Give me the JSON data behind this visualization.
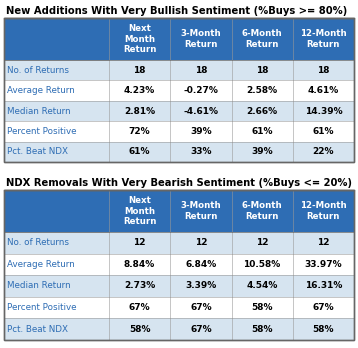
{
  "title1": "New Additions With Very Bullish Sentiment (%Buys >= 80%)",
  "title2": "NDX Removals With Very Bearish Sentiment (%Buys <= 20%)",
  "col_headers": [
    "Next\nMonth\nReturn",
    "3-Month\nReturn",
    "6-Month\nReturn",
    "12-Month\nReturn"
  ],
  "row_labels": [
    "No. of Returns",
    "Average Return",
    "Median Return",
    "Percent Positive",
    "Pct. Beat NDX"
  ],
  "table1_data": [
    [
      "18",
      "18",
      "18",
      "18"
    ],
    [
      "4.23%",
      "-0.27%",
      "2.58%",
      "4.61%"
    ],
    [
      "2.81%",
      "-4.61%",
      "2.66%",
      "14.39%"
    ],
    [
      "72%",
      "39%",
      "61%",
      "61%"
    ],
    [
      "61%",
      "33%",
      "39%",
      "22%"
    ]
  ],
  "table2_data": [
    [
      "12",
      "12",
      "12",
      "12"
    ],
    [
      "8.84%",
      "6.84%",
      "10.58%",
      "33.97%"
    ],
    [
      "2.73%",
      "3.39%",
      "4.54%",
      "16.31%"
    ],
    [
      "67%",
      "67%",
      "58%",
      "67%"
    ],
    [
      "58%",
      "67%",
      "58%",
      "58%"
    ]
  ],
  "header_bg": "#2E6DB4",
  "header_text": "#FFFFFF",
  "row_label_bg_even": "#D6E4F0",
  "row_label_bg_odd": "#FFFFFF",
  "cell_bg_even": "#D6E4F0",
  "cell_bg_odd": "#FFFFFF",
  "row_label_text": "#2E6DB4",
  "cell_text": "#000000",
  "border_color": "#999999",
  "outer_border": "#666666",
  "title_color": "#000000",
  "title_fontsize": 7.2,
  "header_fontsize": 6.2,
  "cell_fontsize": 6.5,
  "row_label_fontsize": 6.3,
  "background_color": "#FFFFFF"
}
